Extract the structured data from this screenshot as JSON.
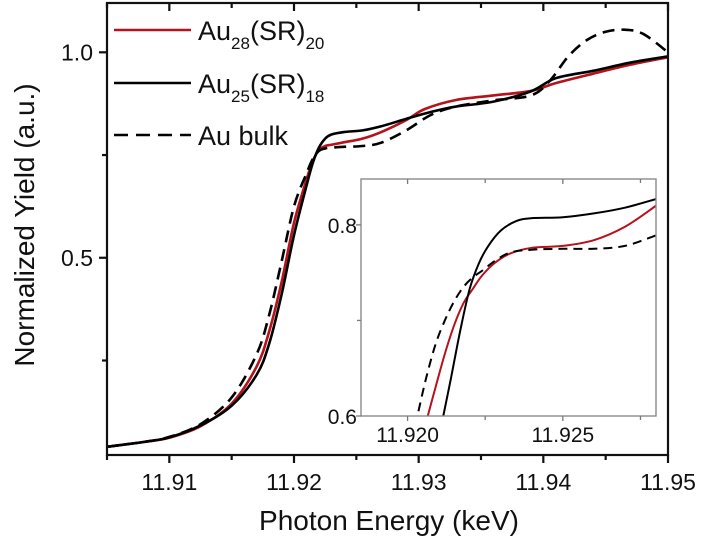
{
  "chart_data": [
    {
      "id": "main",
      "type": "line",
      "title": "",
      "xlabel": "Photon Energy (keV)",
      "ylabel": "Normalized Yield (a.u.)",
      "xlim": [
        11.905,
        11.95
      ],
      "ylim": [
        0.02,
        1.12
      ],
      "xticks": [
        11.91,
        11.92,
        11.93,
        11.94,
        11.95
      ],
      "xtick_labels": [
        "11.91",
        "11.92",
        "11.93",
        "11.94",
        "11.95"
      ],
      "xminor": [
        11.905,
        11.915,
        11.925,
        11.935,
        11.945
      ],
      "yticks": [
        0.5,
        1.0
      ],
      "ytick_labels": [
        "0.5",
        "1.0"
      ],
      "yminor": [
        0.25,
        0.75
      ],
      "grid": false,
      "legend": {
        "position": "top-left",
        "entries": [
          {
            "base": "Au",
            "sub1": "28",
            "mid": "(SR)",
            "sub2": "20"
          },
          {
            "base": "Au",
            "sub1": "25",
            "mid": "(SR)",
            "sub2": "18"
          },
          {
            "base": "Au bulk",
            "sub1": "",
            "mid": "",
            "sub2": ""
          }
        ]
      },
      "series": [
        {
          "name": "Au28(SR)20",
          "color": "#b5121b",
          "style": "solid",
          "x": [
            11.905,
            11.908,
            11.91,
            11.9125,
            11.915,
            11.917,
            11.918,
            11.919,
            11.92,
            11.921,
            11.9215,
            11.922,
            11.9225,
            11.923,
            11.924,
            11.9255,
            11.927,
            11.929,
            11.9305,
            11.933,
            11.936,
            11.939,
            11.941,
            11.944,
            11.947,
            11.95
          ],
          "y": [
            0.04,
            0.052,
            0.062,
            0.09,
            0.145,
            0.235,
            0.32,
            0.44,
            0.585,
            0.69,
            0.735,
            0.762,
            0.772,
            0.775,
            0.781,
            0.79,
            0.806,
            0.835,
            0.862,
            0.884,
            0.895,
            0.906,
            0.925,
            0.948,
            0.97,
            0.988
          ]
        },
        {
          "name": "Au25(SR)18",
          "color": "#000000",
          "style": "solid",
          "x": [
            11.905,
            11.908,
            11.91,
            11.9125,
            11.915,
            11.917,
            11.918,
            11.919,
            11.92,
            11.921,
            11.9215,
            11.922,
            11.9225,
            11.923,
            11.924,
            11.9255,
            11.927,
            11.929,
            11.931,
            11.933,
            11.936,
            11.939,
            11.941,
            11.944,
            11.947,
            11.95
          ],
          "y": [
            0.04,
            0.052,
            0.063,
            0.092,
            0.14,
            0.215,
            0.29,
            0.41,
            0.555,
            0.675,
            0.73,
            0.768,
            0.79,
            0.8,
            0.806,
            0.81,
            0.82,
            0.838,
            0.855,
            0.868,
            0.88,
            0.905,
            0.937,
            0.955,
            0.975,
            0.99
          ]
        },
        {
          "name": "Au bulk",
          "color": "#000000",
          "style": "dashed",
          "x": [
            11.905,
            11.908,
            11.91,
            11.9125,
            11.915,
            11.917,
            11.918,
            11.919,
            11.92,
            11.921,
            11.9215,
            11.922,
            11.9225,
            11.923,
            11.924,
            11.9255,
            11.927,
            11.929,
            11.931,
            11.933,
            11.936,
            11.939,
            11.9405,
            11.942,
            11.9435,
            11.945,
            11.9465,
            11.948,
            11.95
          ],
          "y": [
            0.04,
            0.052,
            0.064,
            0.095,
            0.16,
            0.265,
            0.36,
            0.49,
            0.625,
            0.705,
            0.74,
            0.76,
            0.766,
            0.768,
            0.77,
            0.772,
            0.78,
            0.81,
            0.848,
            0.868,
            0.883,
            0.895,
            0.93,
            0.99,
            1.03,
            1.05,
            1.055,
            1.045,
            1.0
          ]
        }
      ]
    },
    {
      "id": "inset",
      "type": "line",
      "title": "",
      "xlabel": "",
      "ylabel": "",
      "xlim": [
        11.9185,
        11.928
      ],
      "ylim": [
        0.6,
        0.848
      ],
      "xticks": [
        11.92,
        11.925
      ],
      "xtick_labels": [
        "11.920",
        "11.925"
      ],
      "xminor": [
        11.9225,
        11.9275
      ],
      "yticks": [
        0.6,
        0.8
      ],
      "ytick_labels": [
        "0.6",
        "0.8"
      ],
      "yminor": [
        0.7
      ],
      "grid": false,
      "series": [
        {
          "name": "Au28(SR)20",
          "color": "#b5121b",
          "style": "solid",
          "x": [
            11.92065,
            11.9209,
            11.9212,
            11.9215,
            11.9218,
            11.9221,
            11.9224,
            11.9228,
            11.9233,
            11.924,
            11.925,
            11.926,
            11.927,
            11.928
          ],
          "y": [
            0.6,
            0.63,
            0.665,
            0.695,
            0.718,
            0.733,
            0.747,
            0.76,
            0.77,
            0.776,
            0.778,
            0.784,
            0.798,
            0.82
          ]
        },
        {
          "name": "Au25(SR)18",
          "color": "#000000",
          "style": "solid",
          "x": [
            11.92115,
            11.9214,
            11.9217,
            11.922,
            11.9223,
            11.9226,
            11.923,
            11.9235,
            11.924,
            11.925,
            11.926,
            11.927,
            11.928
          ],
          "y": [
            0.6,
            0.64,
            0.69,
            0.733,
            0.76,
            0.778,
            0.794,
            0.804,
            0.807,
            0.808,
            0.812,
            0.818,
            0.827
          ]
        },
        {
          "name": "Au bulk",
          "color": "#000000",
          "style": "dashed",
          "x": [
            11.92035,
            11.9206,
            11.9209,
            11.9212,
            11.9215,
            11.9218,
            11.9221,
            11.9224,
            11.9228,
            11.9233,
            11.924,
            11.925,
            11.926,
            11.927,
            11.928
          ],
          "y": [
            0.605,
            0.64,
            0.675,
            0.7,
            0.72,
            0.735,
            0.745,
            0.752,
            0.762,
            0.771,
            0.774,
            0.775,
            0.775,
            0.778,
            0.789
          ]
        }
      ]
    }
  ]
}
